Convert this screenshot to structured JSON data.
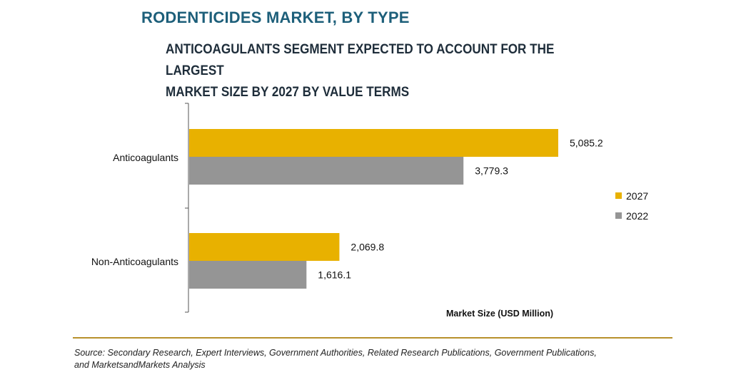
{
  "header": {
    "title": "RODENTICIDES MARKET, BY TYPE",
    "subtitle_line1": "ANTICOAGULANTS SEGMENT EXPECTED TO ACCOUNT FOR THE LARGEST",
    "subtitle_line2": "MARKET SIZE BY 2027 BY VALUE TERMS"
  },
  "chart_data": {
    "type": "bar",
    "orientation": "horizontal",
    "categories": [
      "Anticoagulants",
      "Non-Anticoagulants"
    ],
    "series": [
      {
        "name": "2027",
        "values": [
          5085.2,
          2069.8
        ],
        "labels": [
          "5,085.2",
          "2,069.8"
        ],
        "color": "#e8b100"
      },
      {
        "name": "2022",
        "values": [
          3779.3,
          1616.1
        ],
        "labels": [
          "3,779.3",
          "1,616.1"
        ],
        "color": "#959595"
      }
    ],
    "xlabel": "Market Size (USD Million)",
    "xlim": [
      0,
      5500
    ],
    "grid": false,
    "legend": "right"
  },
  "footer": {
    "source_line1": "Source: Secondary Research, Expert Interviews, Government Authorities, Related Research Publications, Government Publications,",
    "source_line2": "and MarketsandMarkets Analysis"
  }
}
